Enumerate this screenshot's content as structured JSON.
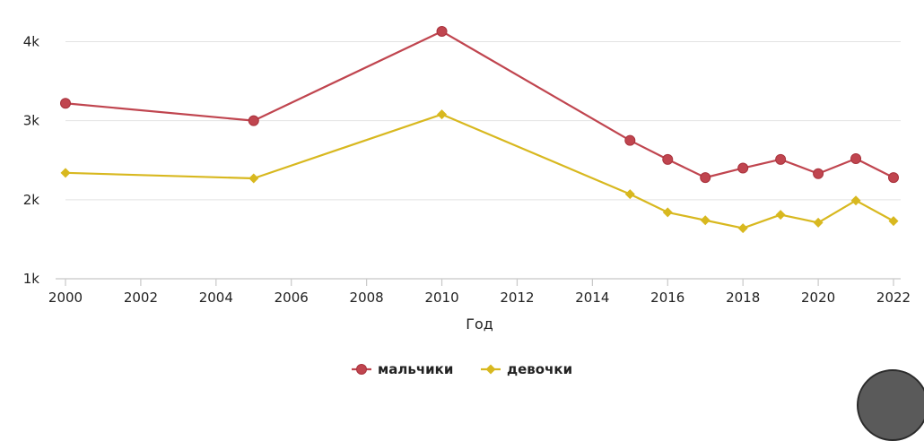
{
  "chart_data": {
    "type": "line",
    "title": "",
    "xlabel": "Год",
    "ylabel": "",
    "x": [
      2000,
      2005,
      2010,
      2015,
      2016,
      2017,
      2018,
      2019,
      2020,
      2021,
      2022
    ],
    "xlim": [
      2000,
      2022
    ],
    "ylim": [
      1000,
      4300
    ],
    "x_ticks": [
      "2000",
      "2002",
      "2004",
      "2006",
      "2008",
      "2010",
      "2012",
      "2014",
      "2016",
      "2018",
      "2020",
      "2022"
    ],
    "y_ticks": [
      {
        "value": 1000,
        "label": "1k"
      },
      {
        "value": 2000,
        "label": "2k"
      },
      {
        "value": 3000,
        "label": "3k"
      },
      {
        "value": 4000,
        "label": "4k"
      }
    ],
    "grid": "horizontal",
    "legend_position": "bottom-center",
    "series": [
      {
        "name": "мальчики",
        "color": "#c0454f",
        "marker": "circle",
        "values": [
          3220,
          3000,
          4130,
          2750,
          2510,
          2280,
          2400,
          2510,
          2330,
          2520,
          2280
        ]
      },
      {
        "name": "девочки",
        "color": "#d8b81f",
        "marker": "diamond",
        "values": [
          2340,
          2270,
          3080,
          2070,
          1840,
          1740,
          1640,
          1810,
          1710,
          1990,
          1730
        ]
      }
    ]
  }
}
